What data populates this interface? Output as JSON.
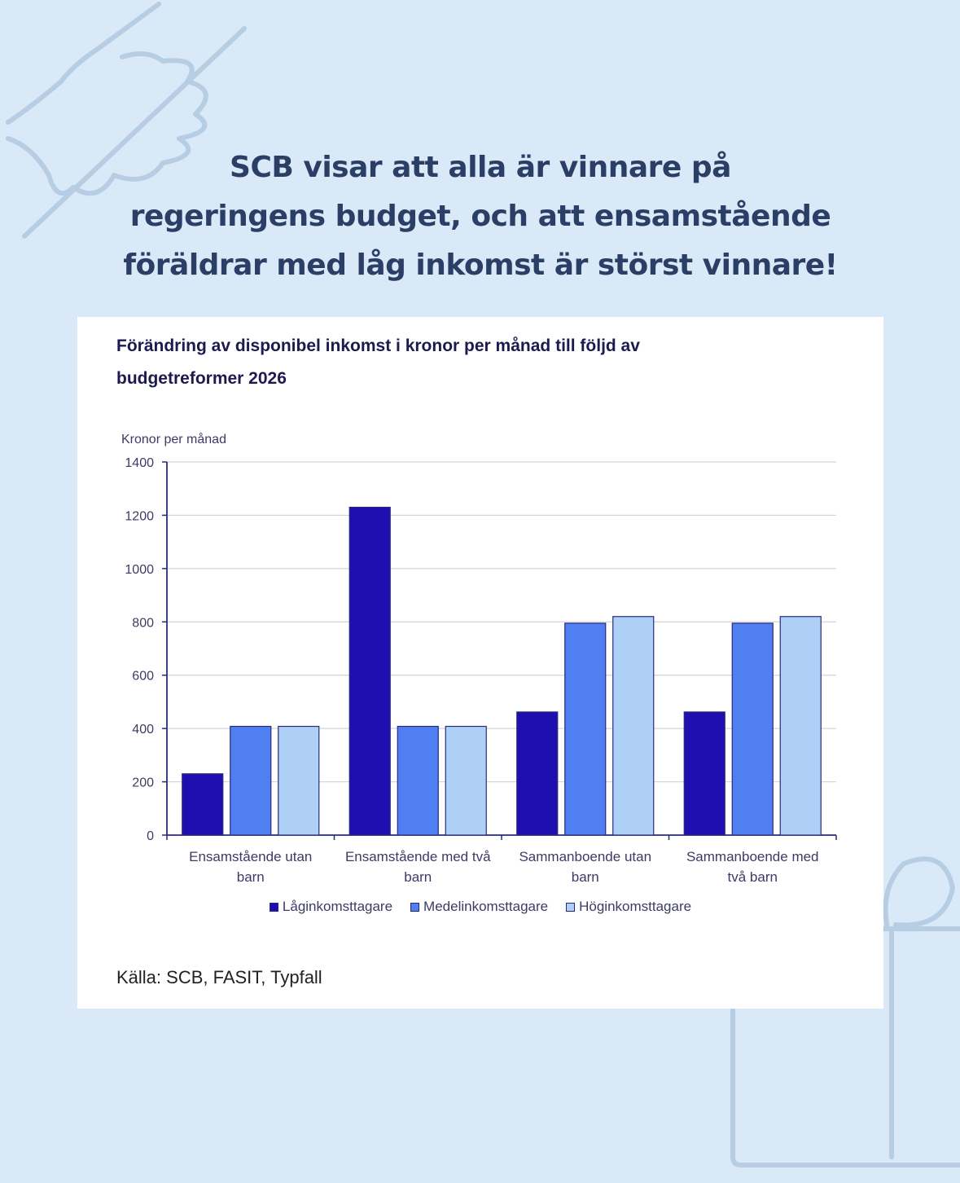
{
  "headline": [
    "SCB visar att alla är vinnare på",
    "regeringens budget, och att ensamstående",
    "föräldrar med låg inkomst är störst vinnare!"
  ],
  "chart_data": {
    "type": "bar",
    "title_lines": [
      "Förändring av disponibel inkomst i kronor per månad till följd av",
      "budgetreformer 2026"
    ],
    "ylabel": "Kronor per månad",
    "ylim": [
      0,
      1400
    ],
    "yticks": [
      0,
      200,
      400,
      600,
      800,
      1000,
      1200,
      1400
    ],
    "grid": true,
    "categories": [
      [
        "Ensamstående utan",
        "barn"
      ],
      [
        "Ensamstående med två",
        "barn"
      ],
      [
        "Sammanboende utan",
        "barn"
      ],
      [
        "Sammanboende med",
        "två barn"
      ]
    ],
    "series": [
      {
        "name": "Låginkomsttagare",
        "color": "#1f0fb0",
        "values": [
          230,
          1230,
          462,
          462
        ]
      },
      {
        "name": "Medelinkomsttagare",
        "color": "#4f7ff0",
        "values": [
          408,
          408,
          795,
          795
        ]
      },
      {
        "name": "Höginkomsttagare",
        "color": "#aed0f7",
        "values": [
          408,
          408,
          820,
          820
        ]
      }
    ],
    "legend_position": "bottom"
  },
  "source": "Källa: SCB, FASIT, Typfall"
}
